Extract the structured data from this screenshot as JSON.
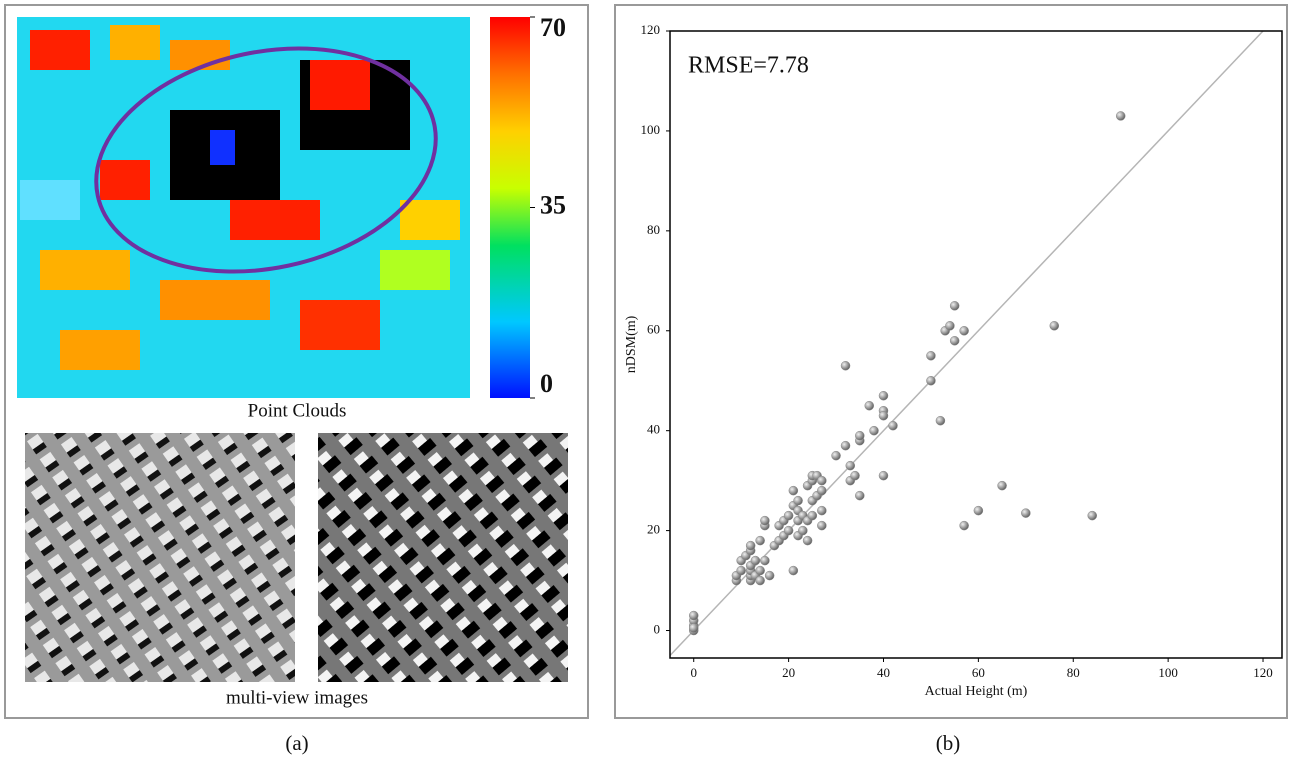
{
  "panel_a": {
    "point_cloud_label": "Point Clouds",
    "images_label": "multi-view images",
    "caption": "(a)",
    "colorbar": {
      "lim": [
        0,
        70
      ],
      "ticks": [
        0,
        35,
        70
      ]
    }
  },
  "chart_data": {
    "type": "scatter",
    "caption": "(b)",
    "annotation": "RMSE=7.78",
    "xlabel": "Actual Height (m)",
    "ylabel": "nDSM(m)",
    "xlim": [
      -5,
      124
    ],
    "ylim": [
      -5.5,
      120
    ],
    "xticks": [
      0,
      20,
      40,
      60,
      80,
      100,
      120
    ],
    "yticks": [
      0,
      20,
      40,
      60,
      80,
      100,
      120
    ],
    "color": "#8a8a8a",
    "line_color": "#b5b5b5",
    "x": [
      0,
      0,
      0,
      0,
      0,
      9,
      9,
      10,
      10,
      11,
      12,
      12,
      12,
      12,
      12,
      12,
      13,
      13,
      14,
      14,
      15,
      15,
      15,
      16,
      14,
      17,
      18,
      18,
      19,
      19,
      20,
      20,
      21,
      21,
      21,
      22,
      22,
      22,
      22,
      23,
      23,
      24,
      24,
      24,
      25,
      25,
      25,
      25,
      26,
      26,
      27,
      27,
      27,
      27,
      30,
      32,
      32,
      33,
      33,
      34,
      35,
      35,
      35,
      37,
      38,
      40,
      40,
      40,
      40,
      42,
      50,
      50,
      52,
      53,
      54,
      55,
      55,
      57,
      57,
      60,
      65,
      70,
      76,
      84,
      90
    ],
    "values": [
      0,
      1,
      2,
      3,
      0.5,
      10,
      11,
      12,
      14,
      15,
      10,
      11,
      12,
      13,
      16,
      17,
      11,
      14,
      10,
      12,
      14,
      21,
      22,
      11,
      18,
      17,
      18,
      21,
      19,
      22,
      20,
      23,
      12,
      25,
      28,
      19,
      22,
      24,
      26,
      20,
      23,
      18,
      22,
      29,
      23,
      26,
      30,
      31,
      27,
      31,
      21,
      24,
      28,
      30,
      35,
      37,
      53,
      33,
      30,
      31,
      38,
      27,
      39,
      45,
      40,
      47,
      44,
      43,
      31,
      41,
      50,
      55,
      42,
      60,
      61,
      58,
      65,
      60,
      21,
      24,
      29,
      23.5,
      61,
      23,
      103
    ]
  }
}
